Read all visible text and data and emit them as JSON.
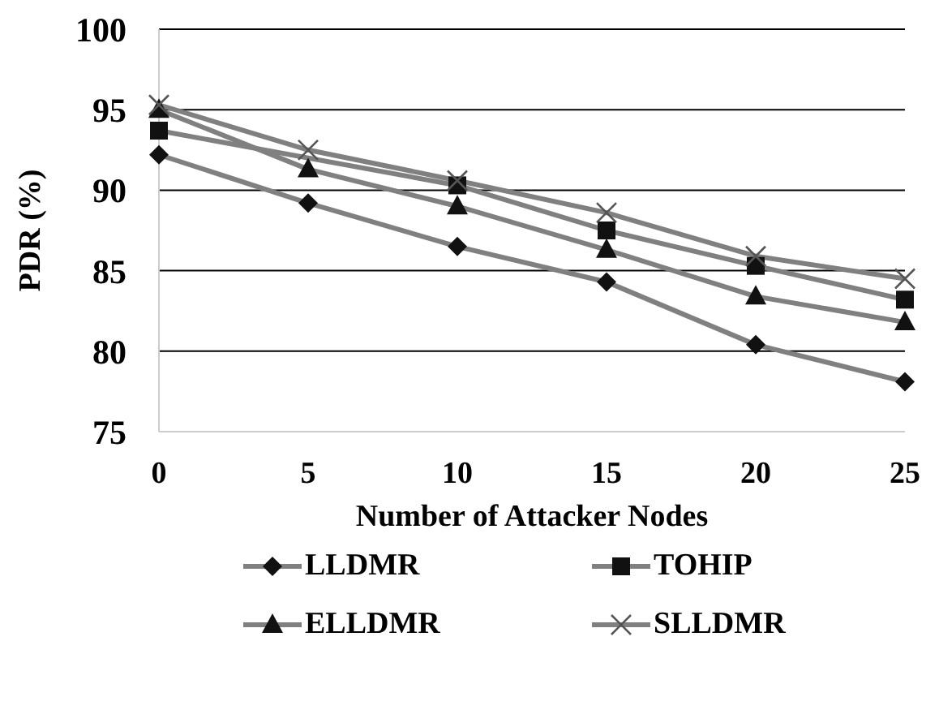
{
  "chart_data": {
    "type": "line",
    "xlabel": "Number of Attacker Nodes",
    "ylabel": "PDR (%)",
    "categories": [
      "0",
      "5",
      "10",
      "15",
      "20",
      "25"
    ],
    "series": [
      {
        "name": "LLDMR",
        "color": "#808080",
        "marker": "diamond",
        "values": [
          92.2,
          89.2,
          86.5,
          84.3,
          80.4,
          78.1
        ]
      },
      {
        "name": "TOHIP",
        "color": "#808080",
        "marker": "square",
        "values": [
          93.7,
          null,
          90.3,
          87.5,
          85.3,
          83.2
        ]
      },
      {
        "name": "ELLDMR",
        "color": "#808080",
        "marker": "triangle",
        "values": [
          95.0,
          91.3,
          89.0,
          86.3,
          83.4,
          81.8
        ]
      },
      {
        "name": "SLLDMR",
        "color": "#808080",
        "marker": "cross",
        "values": [
          95.3,
          92.5,
          90.6,
          88.6,
          85.9,
          84.5
        ]
      }
    ],
    "ylim": [
      75,
      100
    ],
    "yticks": [
      75,
      80,
      85,
      90,
      95,
      100
    ],
    "grid": "y",
    "legend": "bottom"
  }
}
